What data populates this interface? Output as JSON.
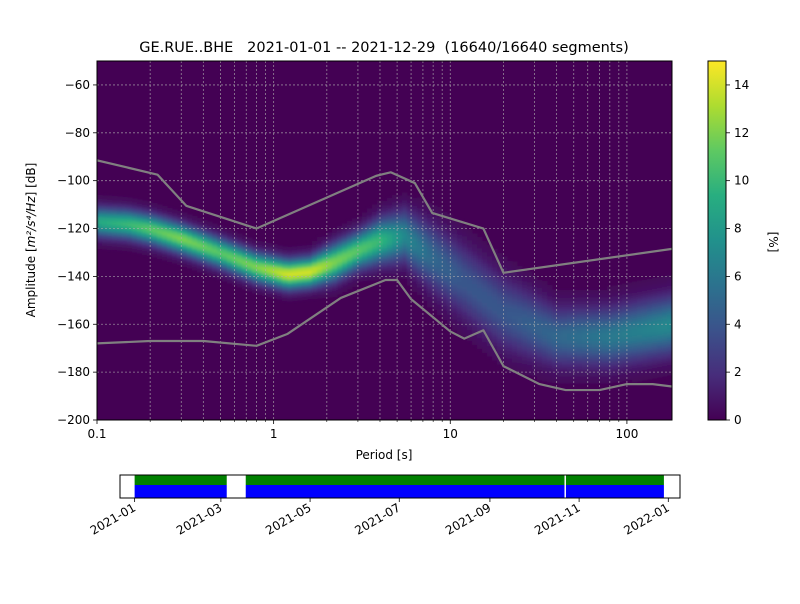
{
  "chart_data": [
    {
      "type": "heatmap",
      "title": "GE.RUE..BHE   2021-01-01 -- 2021-12-29  (16640/16640 segments)",
      "xlabel": "Period [s]",
      "ylabel_main": "Amplitude [",
      "ylabel_math": "m²/s⁴/Hz",
      "ylabel_tail": "] [dB]",
      "x_scale": "log",
      "xlim": [
        0.1,
        180
      ],
      "ylim": [
        -200,
        -50
      ],
      "x_ticks": [
        {
          "value": 0.1,
          "label": "0.1"
        },
        {
          "value": 1,
          "label": "1"
        },
        {
          "value": 10,
          "label": "10"
        },
        {
          "value": 100,
          "label": "100"
        }
      ],
      "y_ticks": [
        {
          "value": -60,
          "label": "−60"
        },
        {
          "value": -80,
          "label": "−80"
        },
        {
          "value": -100,
          "label": "−100"
        },
        {
          "value": -120,
          "label": "−120"
        },
        {
          "value": -140,
          "label": "−140"
        },
        {
          "value": -160,
          "label": "−160"
        },
        {
          "value": -180,
          "label": "−180"
        },
        {
          "value": -200,
          "label": "−200"
        }
      ],
      "grid": true,
      "colormap": "viridis",
      "colorbar": {
        "label": "[%]",
        "range": [
          0,
          15
        ],
        "ticks": [
          {
            "value": 0,
            "label": "0"
          },
          {
            "value": 2,
            "label": "2"
          },
          {
            "value": 4,
            "label": "4"
          },
          {
            "value": 6,
            "label": "6"
          },
          {
            "value": 8,
            "label": "8"
          },
          {
            "value": 10,
            "label": "10"
          },
          {
            "value": 12,
            "label": "12"
          },
          {
            "value": 14,
            "label": "14"
          }
        ]
      },
      "density_ridge": [
        {
          "period": 0.1,
          "db": -117,
          "peak_pct": 9,
          "spread_db": 4
        },
        {
          "period": 0.15,
          "db": -118,
          "peak_pct": 10,
          "spread_db": 4
        },
        {
          "period": 0.2,
          "db": -120,
          "peak_pct": 11,
          "spread_db": 4
        },
        {
          "period": 0.3,
          "db": -124,
          "peak_pct": 12,
          "spread_db": 4
        },
        {
          "period": 0.5,
          "db": -130,
          "peak_pct": 11,
          "spread_db": 4
        },
        {
          "period": 0.8,
          "db": -136,
          "peak_pct": 12,
          "spread_db": 4
        },
        {
          "period": 1.2,
          "db": -139,
          "peak_pct": 14,
          "spread_db": 4
        },
        {
          "period": 1.6,
          "db": -138,
          "peak_pct": 14,
          "spread_db": 4
        },
        {
          "period": 2.2,
          "db": -134,
          "peak_pct": 12,
          "spread_db": 5
        },
        {
          "period": 3,
          "db": -129,
          "peak_pct": 11,
          "spread_db": 5
        },
        {
          "period": 4,
          "db": -125,
          "peak_pct": 10,
          "spread_db": 6
        },
        {
          "period": 5.5,
          "db": -123,
          "peak_pct": 7,
          "spread_db": 7
        },
        {
          "period": 8,
          "db": -132,
          "peak_pct": 5,
          "spread_db": 9
        },
        {
          "period": 12,
          "db": -142,
          "peak_pct": 4,
          "spread_db": 10
        },
        {
          "period": 20,
          "db": -155,
          "peak_pct": 4,
          "spread_db": 10
        },
        {
          "period": 40,
          "db": -165,
          "peak_pct": 5,
          "spread_db": 8
        },
        {
          "period": 80,
          "db": -165,
          "peak_pct": 6,
          "spread_db": 8
        },
        {
          "period": 180,
          "db": -160,
          "peak_pct": 7,
          "spread_db": 8
        }
      ],
      "series": [
        {
          "x": [
            0.1,
            0.22,
            0.32,
            0.8,
            3.8,
            4.6,
            6.3,
            7.9,
            15.4,
            20,
            180
          ],
          "y": [
            -91.5,
            -97.5,
            -110.5,
            -120,
            -98,
            -96.5,
            -101,
            -113.5,
            -120,
            -138.5,
            -128.5
          ]
        },
        {
          "x": [
            0.1,
            0.2,
            0.4,
            0.8,
            1.2,
            2.4,
            4.3,
            5,
            6,
            10,
            12,
            15.4,
            20,
            32,
            45,
            70,
            100,
            140,
            180
          ],
          "y": [
            -168,
            -167,
            -167,
            -169,
            -164,
            -149,
            -141.5,
            -141.5,
            -149.5,
            -163,
            -166,
            -162.5,
            -177.5,
            -185,
            -187.5,
            -187.5,
            -185,
            -185,
            -186
          ]
        }
      ]
    },
    {
      "type": "timeline",
      "x_ticks": [
        "2021-01",
        "2021-03",
        "2021-05",
        "2021-07",
        "2021-09",
        "2021-11",
        "2022-01"
      ],
      "range": [
        "2020-12-22",
        "2022-01-09"
      ],
      "segments": [
        {
          "start": "2021-01-01",
          "end": "2021-03-05"
        },
        {
          "start": "2021-03-18",
          "end": "2021-10-22"
        },
        {
          "start": "2021-10-23",
          "end": "2021-12-29"
        }
      ],
      "colors": {
        "upper": "#008000",
        "lower": "#0000ff"
      }
    }
  ]
}
